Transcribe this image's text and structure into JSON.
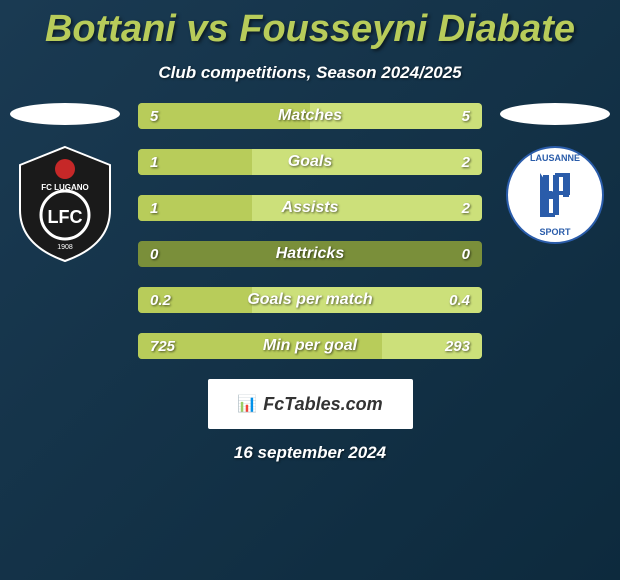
{
  "title": "Bottani vs Fousseyni Diabate",
  "subtitle": "Club competitions, Season 2024/2025",
  "date": "16 september 2024",
  "footer_brand": "FcTables.com",
  "colors": {
    "title": "#b8cc5a",
    "bar_left": "#b8cc5a",
    "bar_right": "#cce07a",
    "bar_bg": "#7a8f3a",
    "background_start": "#1a3a52",
    "background_end": "#0d2a3d"
  },
  "left_club": {
    "name": "FC Lugano",
    "badge_bg": "#1a1a1a",
    "badge_accent": "#ffffff",
    "badge_red": "#c62828"
  },
  "right_club": {
    "name": "Lausanne Sport",
    "badge_bg": "#ffffff",
    "badge_accent": "#2a5caa",
    "badge_text": "#2a5caa"
  },
  "stats": [
    {
      "label": "Matches",
      "left_val": "5",
      "right_val": "5",
      "left_pct": 50,
      "right_pct": 50
    },
    {
      "label": "Goals",
      "left_val": "1",
      "right_val": "2",
      "left_pct": 33,
      "right_pct": 67
    },
    {
      "label": "Assists",
      "left_val": "1",
      "right_val": "2",
      "left_pct": 33,
      "right_pct": 67
    },
    {
      "label": "Hattricks",
      "left_val": "0",
      "right_val": "0",
      "left_pct": 0,
      "right_pct": 0
    },
    {
      "label": "Goals per match",
      "left_val": "0.2",
      "right_val": "0.4",
      "left_pct": 33,
      "right_pct": 67
    },
    {
      "label": "Min per goal",
      "left_val": "725",
      "right_val": "293",
      "left_pct": 71,
      "right_pct": 29
    }
  ]
}
